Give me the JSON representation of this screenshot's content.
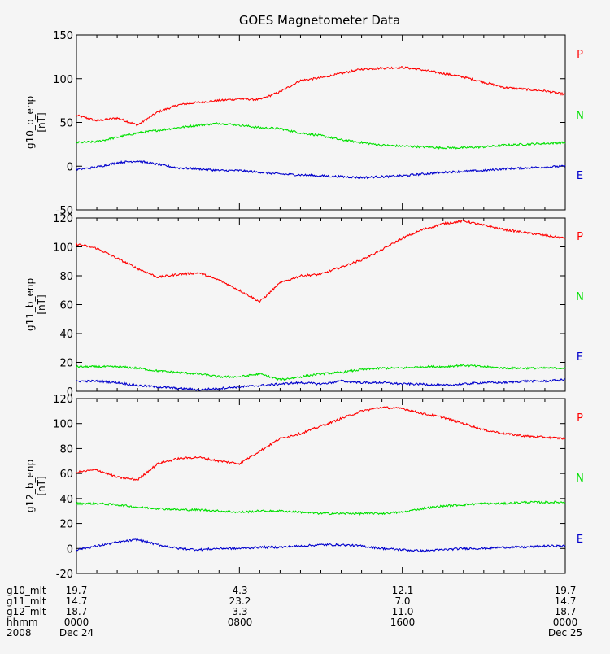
{
  "title": "GOES Magnetometer Data",
  "colors": {
    "P": "#ff0000",
    "N": "#00e000",
    "E": "#0000cc",
    "axis": "#000000"
  },
  "chart_data": [
    {
      "type": "line",
      "ylabel": "g10_b_enp",
      "yunit": "[nT]",
      "ylim": [
        -50,
        150
      ],
      "yticks": [
        -50,
        0,
        50,
        100,
        150
      ],
      "side_labels": [
        "P",
        "N",
        "E"
      ],
      "x_hours": [
        0,
        1,
        2,
        3,
        4,
        5,
        6,
        7,
        8,
        9,
        10,
        11,
        12,
        13,
        14,
        15,
        16,
        17,
        18,
        19,
        20,
        21,
        22,
        23,
        24
      ],
      "series": [
        {
          "name": "P",
          "values": [
            58,
            52,
            55,
            47,
            62,
            70,
            73,
            75,
            77,
            76,
            85,
            98,
            101,
            106,
            111,
            112,
            113,
            110,
            106,
            102,
            96,
            90,
            88,
            86,
            82
          ]
        },
        {
          "name": "N",
          "values": [
            27,
            28,
            33,
            38,
            41,
            44,
            47,
            49,
            47,
            44,
            43,
            38,
            35,
            30,
            27,
            24,
            23,
            22,
            21,
            21,
            22,
            24,
            25,
            26,
            27
          ]
        },
        {
          "name": "E",
          "values": [
            -4,
            -1,
            4,
            6,
            2,
            -2,
            -3,
            -5,
            -5,
            -7,
            -9,
            -10,
            -11,
            -12,
            -13,
            -12,
            -11,
            -9,
            -7,
            -6,
            -5,
            -3,
            -2,
            -1,
            0
          ]
        }
      ]
    },
    {
      "type": "line",
      "ylabel": "g11_b_enp",
      "yunit": "[nT]",
      "ylim": [
        0,
        120
      ],
      "yticks": [
        0,
        20,
        40,
        60,
        80,
        100,
        120
      ],
      "side_labels": [
        "P",
        "N",
        "E"
      ],
      "x_hours": [
        0,
        1,
        2,
        3,
        4,
        5,
        6,
        7,
        8,
        9,
        10,
        11,
        12,
        13,
        14,
        15,
        16,
        17,
        18,
        19,
        20,
        21,
        22,
        23,
        24
      ],
      "series": [
        {
          "name": "P",
          "values": [
            102,
            99,
            92,
            85,
            79,
            81,
            82,
            77,
            70,
            62,
            75,
            80,
            81,
            86,
            91,
            98,
            106,
            112,
            116,
            118,
            115,
            112,
            110,
            108,
            106
          ]
        },
        {
          "name": "N",
          "values": [
            17,
            17,
            17,
            16,
            14,
            13,
            12,
            10,
            10,
            12,
            8,
            10,
            12,
            13,
            15,
            16,
            16,
            17,
            17,
            18,
            17,
            16,
            16,
            16,
            16
          ]
        },
        {
          "name": "E",
          "values": [
            7,
            7,
            6,
            4,
            3,
            2,
            1,
            2,
            3,
            4,
            5,
            6,
            5,
            7,
            6,
            6,
            5,
            5,
            4,
            5,
            6,
            6,
            7,
            7,
            8
          ]
        }
      ]
    },
    {
      "type": "line",
      "ylabel": "g12_b_enp",
      "yunit": "[nT]",
      "ylim": [
        -20,
        120
      ],
      "yticks": [
        -20,
        0,
        20,
        40,
        60,
        80,
        100,
        120
      ],
      "side_labels": [
        "P",
        "N",
        "E"
      ],
      "x_hours": [
        0,
        1,
        2,
        3,
        4,
        5,
        6,
        7,
        8,
        9,
        10,
        11,
        12,
        13,
        14,
        15,
        16,
        17,
        18,
        19,
        20,
        21,
        22,
        23,
        24
      ],
      "series": [
        {
          "name": "P",
          "values": [
            61,
            63,
            57,
            55,
            68,
            72,
            73,
            70,
            68,
            78,
            88,
            92,
            98,
            104,
            110,
            113,
            112,
            108,
            105,
            100,
            95,
            92,
            90,
            89,
            88
          ]
        },
        {
          "name": "N",
          "values": [
            36,
            36,
            35,
            33,
            32,
            31,
            31,
            30,
            29,
            30,
            30,
            29,
            28,
            28,
            28,
            28,
            29,
            32,
            34,
            35,
            36,
            36,
            37,
            37,
            37
          ]
        },
        {
          "name": "E",
          "values": [
            -1,
            2,
            5,
            7,
            3,
            0,
            -1,
            0,
            0,
            1,
            1,
            2,
            3,
            3,
            2,
            0,
            -1,
            -2,
            -1,
            0,
            0,
            1,
            1,
            2,
            2
          ]
        }
      ]
    }
  ],
  "footer": {
    "rows": [
      {
        "label": "g10_mlt",
        "values": [
          "19.7",
          "4.3",
          "12.1",
          "19.7"
        ]
      },
      {
        "label": "g11_mlt",
        "values": [
          "14.7",
          "23.2",
          "7.0",
          "14.7"
        ]
      },
      {
        "label": "g12_mlt",
        "values": [
          "18.7",
          "3.3",
          "11.0",
          "18.7"
        ]
      },
      {
        "label": "hhmm",
        "values": [
          "0000",
          "0800",
          "1600",
          "0000"
        ]
      },
      {
        "label": "2008",
        "values": [
          "Dec 24",
          "",
          "",
          "Dec 25"
        ]
      }
    ]
  }
}
